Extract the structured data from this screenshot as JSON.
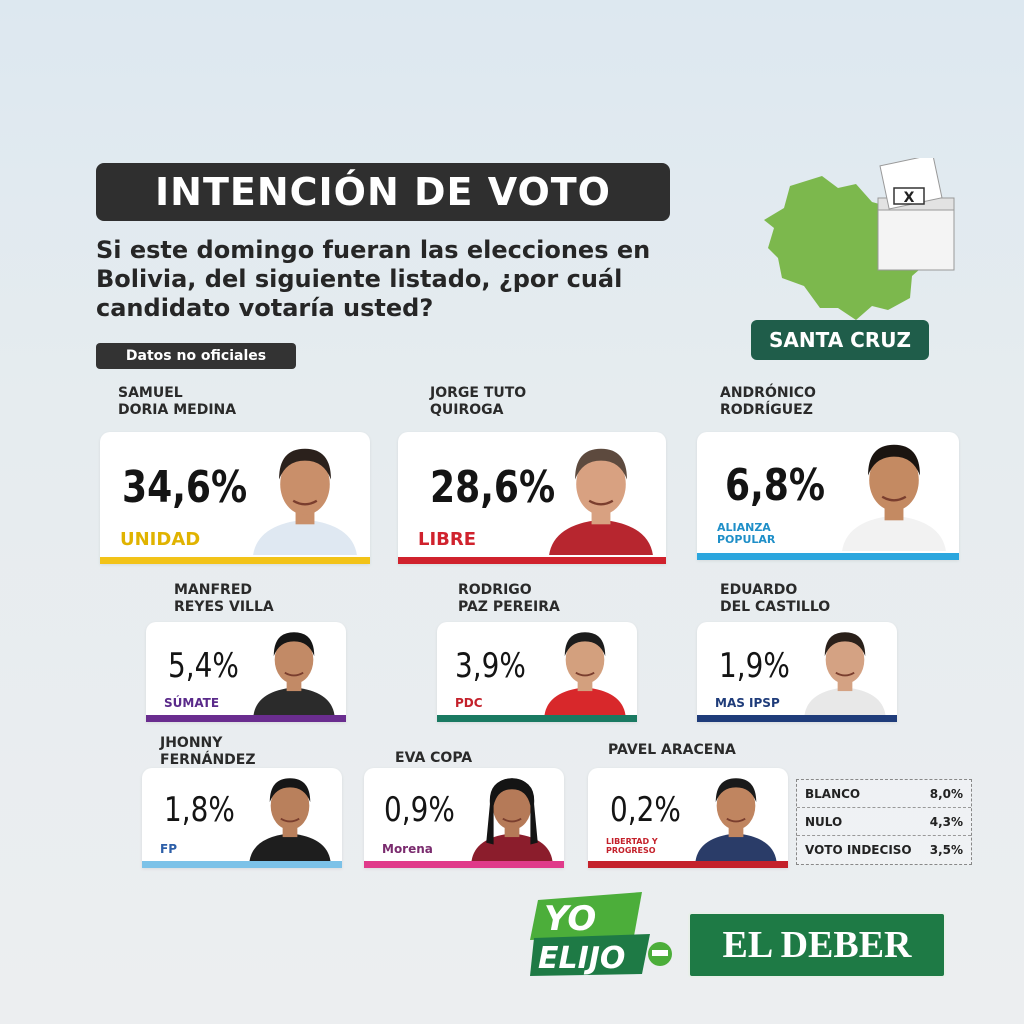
{
  "header": {
    "title": "INTENCIÓN DE VOTO",
    "question": "Si este domingo fueran las elecciones en Bolivia, del siguiente listado, ¿por cuál candidato votaría usted?",
    "disclaimer": "Datos no oficiales",
    "region": "SANTA CRUZ",
    "ballot_mark": "X"
  },
  "chart_data": {
    "type": "bar",
    "title": "INTENCIÓN DE VOTO",
    "categories": [
      "SAMUEL DORIA MEDINA",
      "JORGE TUTO QUIROGA",
      "ANDRÓNICO RODRÍGUEZ",
      "MANFRED REYES VILLA",
      "RODRIGO PAZ PEREIRA",
      "EDUARDO DEL CASTILLO",
      "JHONNY FERNÁNDEZ",
      "EVA COPA",
      "PAVEL ARACENA",
      "BLANCO",
      "NULO",
      "VOTO INDECISO"
    ],
    "values": [
      34.6,
      28.6,
      6.8,
      5.4,
      3.9,
      1.9,
      1.8,
      0.9,
      0.2,
      8.0,
      4.3,
      3.5
    ],
    "unit": "%"
  },
  "candidates": [
    {
      "name": "SAMUEL\nDORIA MEDINA",
      "pct": "34,6%",
      "party": "UNIDAD",
      "color": "#f2c318",
      "party_color": "#e0b300",
      "skin": "#c98f6a",
      "hair": "#2b211c",
      "suit": "#dfe8f2"
    },
    {
      "name": "JORGE TUTO\nQUIROGA",
      "pct": "28,6%",
      "party": "LIBRE",
      "color": "#d0222d",
      "party_color": "#d0222d",
      "skin": "#d8a181",
      "hair": "#5d4a3e",
      "suit": "#b7262f"
    },
    {
      "name": "ANDRÓNICO\nRODRÍGUEZ",
      "pct": "6,8%",
      "party": "ALIANZA POPULAR",
      "color": "#2ba6de",
      "party_color": "#1f8fc8",
      "skin": "#c48a62",
      "hair": "#1a1410",
      "suit": "#f2f2f2"
    },
    {
      "name": "MANFRED\nREYES VILLA",
      "pct": "5,4%",
      "party": "SÚMATE",
      "color": "#6a2d8f",
      "party_color": "#5a2a8a",
      "skin": "#c28a66",
      "hair": "#151515",
      "suit": "#2b2b2b"
    },
    {
      "name": "RODRIGO\nPAZ PEREIRA",
      "pct": "3,9%",
      "party": "PDC",
      "color": "#1a7a62",
      "party_color": "#c4212b",
      "skin": "#d3a07e",
      "hair": "#1c1c1c",
      "suit": "#d8282b"
    },
    {
      "name": "EDUARDO\nDEL CASTILLO",
      "pct": "1,9%",
      "party": "MAS IPSP",
      "color": "#1f3c7a",
      "party_color": "#1f3c7a",
      "skin": "#d4a283",
      "hair": "#2a201a",
      "suit": "#e8e8e8"
    },
    {
      "name": "JHONNY\nFERNÁNDEZ",
      "pct": "1,8%",
      "party": "FP",
      "color": "#7cc2e8",
      "party_color": "#2d5fa8",
      "skin": "#b9805c",
      "hair": "#161616",
      "suit": "#1e1e1e"
    },
    {
      "name": "EVA COPA",
      "pct": "0,9%",
      "party": "Morena",
      "color": "#e03a8a",
      "party_color": "#7a2b6e",
      "skin": "#b57a58",
      "hair": "#141414",
      "suit": "#8b1d2c"
    },
    {
      "name": "PAVEL ARACENA",
      "pct": "0,2%",
      "party": "LIBERTAD Y PROGRESO",
      "color": "#c4212b",
      "party_color": "#c4212b",
      "skin": "#c08560",
      "hair": "#1a1a1a",
      "suit": "#2a3c68"
    }
  ],
  "results": [
    {
      "label": "BLANCO",
      "value": "8,0%"
    },
    {
      "label": "NULO",
      "value": "4,3%"
    },
    {
      "label": "VOTO INDECISO",
      "value": "3,5%"
    }
  ],
  "brand": {
    "yo": "YO",
    "elijo": "ELIJO",
    "newspaper": "EL DEBER",
    "green": "#1e7a45",
    "lime": "#4cae3a"
  },
  "colors": {
    "title_bg": "#2f2f2f",
    "region_bg": "#1f5d4a",
    "map_green": "#7cb84d"
  }
}
